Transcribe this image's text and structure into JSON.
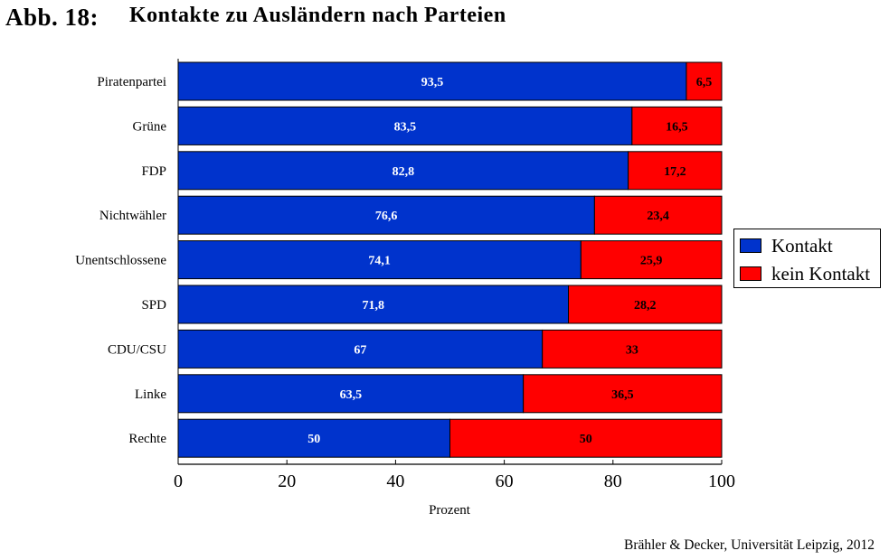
{
  "header": {
    "figure_label": "Abb. 18:",
    "title": "Kontakte zu Ausländern  nach Parteien"
  },
  "chart_data": {
    "type": "bar",
    "orientation": "horizontal",
    "stacked": true,
    "categories": [
      "Piratenpartei",
      "Grüne",
      "FDP",
      "Nichtwähler",
      "Unentschlossene",
      "SPD",
      "CDU/CSU",
      "Linke",
      "Rechte"
    ],
    "series": [
      {
        "name": "Kontakt",
        "color": "#0033cc",
        "values": [
          93.5,
          83.5,
          82.8,
          76.6,
          74.1,
          71.8,
          67,
          63.5,
          50
        ],
        "labels": [
          "93,5",
          "83,5",
          "82,8",
          "76,6",
          "74,1",
          "71,8",
          "67",
          "63,5",
          "50"
        ]
      },
      {
        "name": "kein Kontakt",
        "color": "#ff0000",
        "values": [
          6.5,
          16.5,
          17.2,
          23.4,
          25.9,
          28.2,
          33,
          36.5,
          50
        ],
        "labels": [
          "6,5",
          "16,5",
          "17,2",
          "23,4",
          "25,9",
          "28,2",
          "33",
          "36,5",
          "50"
        ]
      }
    ],
    "xlabel": "Prozent",
    "ylabel": "",
    "xlim": [
      0,
      100
    ],
    "xticks": [
      "0",
      "20",
      "40",
      "60",
      "80",
      "100"
    ],
    "grid": false,
    "legend_position": "right"
  },
  "source": "Brähler & Decker, Universität Leipzig, 2012"
}
